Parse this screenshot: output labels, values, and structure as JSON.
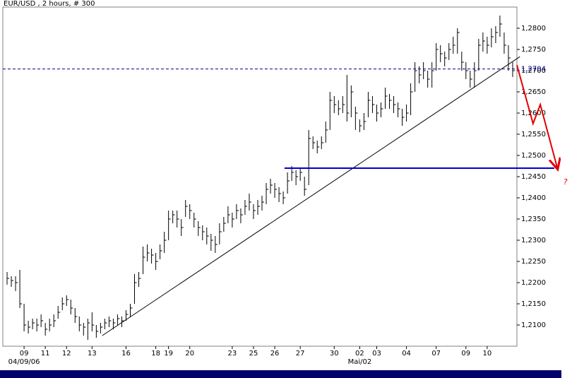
{
  "chart_data": {
    "type": "ohlc",
    "title": "EUR/USD , 2 hours, # 300",
    "color": "#000000",
    "xlim": [
      -1,
      120
    ],
    "ylim": [
      1.205,
      1.285
    ],
    "yticks": [
      {
        "value": 1.21,
        "label": "1,2100"
      },
      {
        "value": 1.215,
        "label": "1,2150"
      },
      {
        "value": 1.22,
        "label": "1,2200"
      },
      {
        "value": 1.225,
        "label": "1,2250"
      },
      {
        "value": 1.23,
        "label": "1,2300"
      },
      {
        "value": 1.235,
        "label": "1,2350"
      },
      {
        "value": 1.24,
        "label": "1,2400"
      },
      {
        "value": 1.245,
        "label": "1,2450"
      },
      {
        "value": 1.25,
        "label": "1,2500"
      },
      {
        "value": 1.255,
        "label": "1,2550"
      },
      {
        "value": 1.26,
        "label": "1,2600"
      },
      {
        "value": 1.265,
        "label": "1,2650"
      },
      {
        "value": 1.27,
        "label": "1,2700"
      },
      {
        "value": 1.275,
        "label": "1,2750"
      },
      {
        "value": 1.28,
        "label": "1,2800"
      }
    ],
    "xticks": [
      {
        "value": 4,
        "label": "09"
      },
      {
        "value": 9,
        "label": "11"
      },
      {
        "value": 14,
        "label": "12"
      },
      {
        "value": 20,
        "label": "13"
      },
      {
        "value": 28,
        "label": "16"
      },
      {
        "value": 35,
        "label": "18"
      },
      {
        "value": 38,
        "label": "19"
      },
      {
        "value": 43,
        "label": "20"
      },
      {
        "value": 53,
        "label": "23"
      },
      {
        "value": 58,
        "label": "25"
      },
      {
        "value": 63,
        "label": "26"
      },
      {
        "value": 69,
        "label": "27"
      },
      {
        "value": 77,
        "label": "30"
      },
      {
        "value": 83,
        "label": "02"
      },
      {
        "value": 87,
        "label": "03"
      },
      {
        "value": 94,
        "label": "04"
      },
      {
        "value": 101,
        "label": "07"
      },
      {
        "value": 108,
        "label": "09"
      },
      {
        "value": 113,
        "label": "10"
      }
    ],
    "xticks_secondary": [
      {
        "value": 4,
        "label": "04/09/06"
      },
      {
        "value": 83,
        "label": "Mai/02"
      }
    ],
    "high": [
      1.2225,
      1.2215,
      1.2215,
      1.223,
      1.215,
      1.211,
      1.2115,
      1.2115,
      1.2125,
      1.2105,
      1.2115,
      1.2125,
      1.2145,
      1.2165,
      1.217,
      1.216,
      1.214,
      1.212,
      1.2105,
      1.2115,
      1.213,
      1.21,
      1.2105,
      1.2115,
      1.212,
      1.2115,
      1.2125,
      1.212,
      1.2135,
      1.215,
      1.222,
      1.2225,
      1.2285,
      1.229,
      1.228,
      1.227,
      1.229,
      1.232,
      1.237,
      1.237,
      1.237,
      1.235,
      1.2395,
      1.2385,
      1.2365,
      1.2345,
      1.2335,
      1.233,
      1.2315,
      1.231,
      1.234,
      1.2355,
      1.238,
      1.2365,
      1.2385,
      1.2375,
      1.2395,
      1.241,
      1.2385,
      1.2395,
      1.2405,
      1.2435,
      1.2445,
      1.2435,
      1.2425,
      1.2415,
      1.246,
      1.2475,
      1.2465,
      1.247,
      1.245,
      1.256,
      1.2545,
      1.2535,
      1.2545,
      1.258,
      1.265,
      1.264,
      1.263,
      1.264,
      1.269,
      1.2665,
      1.2615,
      1.2585,
      1.26,
      1.265,
      1.264,
      1.262,
      1.2625,
      1.266,
      1.2645,
      1.264,
      1.2625,
      1.261,
      1.262,
      1.267,
      1.272,
      1.271,
      1.272,
      1.27,
      1.272,
      1.2765,
      1.276,
      1.2745,
      1.2765,
      1.278,
      1.28,
      1.2745,
      1.272,
      1.27,
      1.272,
      1.2775,
      1.279,
      1.278,
      1.28,
      1.2805,
      1.283,
      1.279,
      1.276,
      1.272
    ],
    "low": [
      1.2195,
      1.219,
      1.218,
      1.214,
      1.2085,
      1.208,
      1.209,
      1.2085,
      1.2095,
      1.2075,
      1.2085,
      1.2095,
      1.2115,
      1.2135,
      1.2145,
      1.2125,
      1.2105,
      1.2085,
      1.2075,
      1.2065,
      1.2085,
      1.207,
      1.208,
      1.209,
      1.2095,
      1.209,
      1.21,
      1.2095,
      1.211,
      1.212,
      1.215,
      1.219,
      1.222,
      1.225,
      1.2245,
      1.223,
      1.2255,
      1.227,
      1.23,
      1.234,
      1.233,
      1.231,
      1.2355,
      1.235,
      1.233,
      1.231,
      1.23,
      1.229,
      1.2275,
      1.227,
      1.229,
      1.232,
      1.234,
      1.233,
      1.235,
      1.234,
      1.236,
      1.237,
      1.235,
      1.236,
      1.237,
      1.2385,
      1.241,
      1.24,
      1.239,
      1.2385,
      1.241,
      1.244,
      1.243,
      1.244,
      1.2405,
      1.243,
      1.2515,
      1.2505,
      1.2515,
      1.253,
      1.256,
      1.26,
      1.2595,
      1.26,
      1.258,
      1.259,
      1.256,
      1.2555,
      1.256,
      1.259,
      1.26,
      1.258,
      1.259,
      1.261,
      1.261,
      1.26,
      1.259,
      1.257,
      1.258,
      1.2595,
      1.265,
      1.267,
      1.268,
      1.266,
      1.266,
      1.27,
      1.272,
      1.271,
      1.2725,
      1.274,
      1.274,
      1.27,
      1.268,
      1.266,
      1.266,
      1.27,
      1.2745,
      1.274,
      1.2755,
      1.2765,
      1.278,
      1.274,
      1.27,
      1.2685
    ],
    "close": [
      1.221,
      1.2205,
      1.22,
      1.215,
      1.21,
      1.2095,
      1.2105,
      1.21,
      1.211,
      1.209,
      1.21,
      1.211,
      1.213,
      1.215,
      1.216,
      1.214,
      1.212,
      1.21,
      1.2095,
      1.2105,
      1.21,
      1.2085,
      1.2095,
      1.2105,
      1.211,
      1.2105,
      1.2115,
      1.211,
      1.2125,
      1.214,
      1.22,
      1.221,
      1.226,
      1.227,
      1.2265,
      1.225,
      1.2275,
      1.23,
      1.235,
      1.236,
      1.235,
      1.233,
      1.238,
      1.237,
      1.235,
      1.233,
      1.232,
      1.231,
      1.23,
      1.229,
      1.232,
      1.234,
      1.236,
      1.235,
      1.237,
      1.236,
      1.238,
      1.239,
      1.237,
      1.238,
      1.239,
      1.242,
      1.243,
      1.242,
      1.241,
      1.24,
      1.244,
      1.246,
      1.245,
      1.246,
      1.242,
      1.254,
      1.253,
      1.252,
      1.253,
      1.256,
      1.263,
      1.262,
      1.261,
      1.262,
      1.26,
      1.265,
      1.26,
      1.257,
      1.258,
      1.263,
      1.262,
      1.26,
      1.261,
      1.264,
      1.263,
      1.262,
      1.261,
      1.259,
      1.26,
      1.265,
      1.27,
      1.269,
      1.27,
      1.268,
      1.27,
      1.275,
      1.274,
      1.273,
      1.275,
      1.276,
      1.279,
      1.272,
      1.27,
      1.268,
      1.27,
      1.276,
      1.277,
      1.276,
      1.278,
      1.279,
      1.281,
      1.276,
      1.273,
      1.27
    ],
    "reference_line": {
      "value": 1.2704,
      "label": "1,2704",
      "color": "#00008b"
    },
    "support_line": {
      "x": [
        65.3,
        128.8
      ],
      "value": 1.247,
      "color": "#0000c8"
    },
    "trendline": {
      "x": [
        22.4,
        120.7
      ],
      "values": [
        1.2075,
        1.2733
      ],
      "color": "#000000"
    },
    "projection": {
      "x": [
        120,
        123.8,
        125.5,
        129.6
      ],
      "values": [
        1.2713,
        1.2575,
        1.262,
        1.2467
      ],
      "color": "#e00000"
    },
    "annotation": "?"
  }
}
